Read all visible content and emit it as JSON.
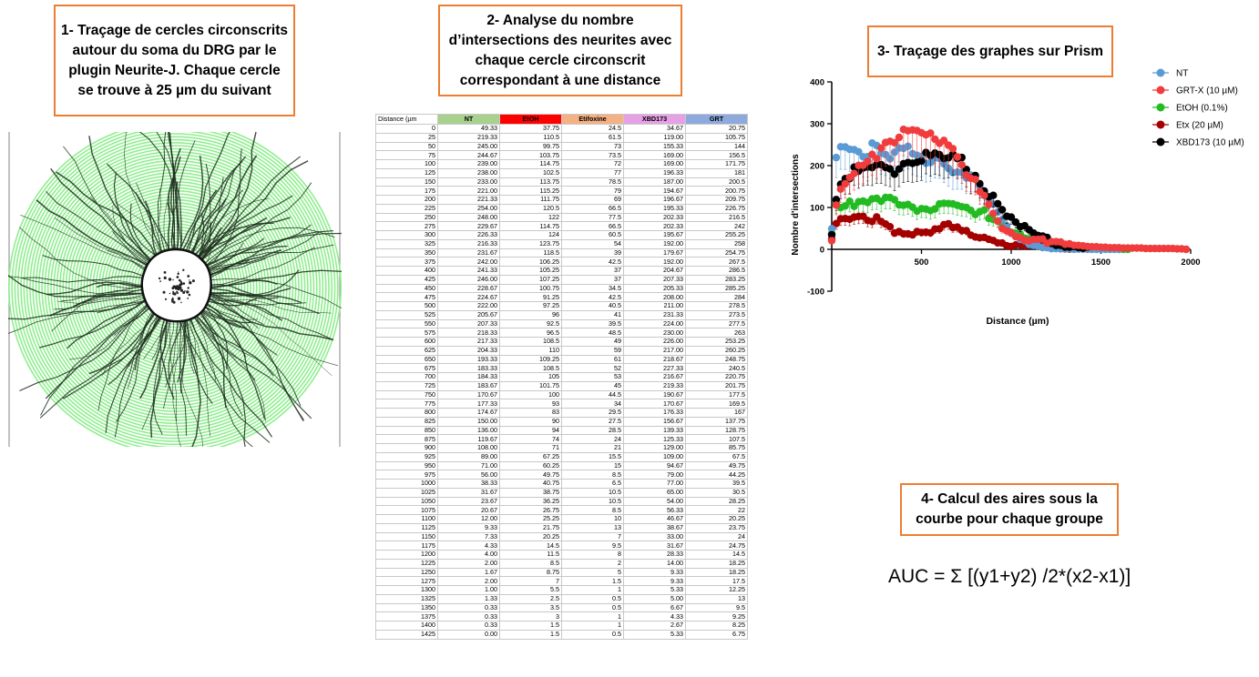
{
  "steps": {
    "step1": "1- Traçage de cercles circonscrits autour du soma du DRG par le plugin Neurite-J. Chaque cercle se trouve à 25 µm du suivant",
    "step2": "2- Analyse du nombre d’intersections des neurites avec chaque cercle circonscrit correspondant à une distance",
    "step3": "3- Traçage des graphes sur Prism",
    "step4": "4- Calcul des aires sous la courbe pour chaque groupe"
  },
  "formula": "AUC = Σ [(y1+y2) /2*(x2-x1)]",
  "colors": {
    "box_border": "#ed7d31",
    "circle_green": "#90ee90",
    "NT": "#5b9bd5",
    "EtOH": "#ff0000",
    "Etifoxine": "#f4b183",
    "XBD173": "#e6a1e6",
    "GRT": "#8ea9db",
    "header_NT": "#a9d18e"
  },
  "table": {
    "headers": [
      "Distance (µm",
      "NT",
      "EtOH",
      "Etifoxine",
      "XBD173",
      "GRT"
    ],
    "rows": [
      [
        "0",
        "49.33",
        "37.75",
        "24.5",
        "34.67",
        "20.75"
      ],
      [
        "25",
        "219.33",
        "110.5",
        "61.5",
        "119.00",
        "105.75"
      ],
      [
        "50",
        "245.00",
        "99.75",
        "73",
        "155.33",
        "144"
      ],
      [
        "75",
        "244.67",
        "103.75",
        "73.5",
        "169.00",
        "156.5"
      ],
      [
        "100",
        "239.00",
        "114.75",
        "72",
        "169.00",
        "171.75"
      ],
      [
        "125",
        "238.00",
        "102.5",
        "77",
        "196.33",
        "181"
      ],
      [
        "150",
        "233.00",
        "113.75",
        "78.5",
        "187.00",
        "200.5"
      ],
      [
        "175",
        "221.00",
        "115.25",
        "79",
        "194.67",
        "200.75"
      ],
      [
        "200",
        "221.33",
        "111.75",
        "69",
        "196.67",
        "209.75"
      ],
      [
        "225",
        "254.00",
        "120.5",
        "66.5",
        "195.33",
        "226.75"
      ],
      [
        "250",
        "248.00",
        "122",
        "77.5",
        "202.33",
        "216.5"
      ],
      [
        "275",
        "229.67",
        "114.75",
        "66.5",
        "202.33",
        "242"
      ],
      [
        "300",
        "226.33",
        "124",
        "60.5",
        "195.67",
        "255.25"
      ],
      [
        "325",
        "216.33",
        "123.75",
        "54",
        "192.00",
        "258"
      ],
      [
        "350",
        "231.67",
        "118.5",
        "39",
        "179.67",
        "254.75"
      ],
      [
        "375",
        "242.00",
        "106.25",
        "42.5",
        "192.00",
        "267.5"
      ],
      [
        "400",
        "241.33",
        "105.25",
        "37",
        "204.67",
        "286.5"
      ],
      [
        "425",
        "246.00",
        "107.25",
        "37",
        "207.33",
        "283.25"
      ],
      [
        "450",
        "228.67",
        "100.75",
        "34.5",
        "205.33",
        "285.25"
      ],
      [
        "475",
        "224.67",
        "91.25",
        "42.5",
        "208.00",
        "284"
      ],
      [
        "500",
        "222.00",
        "97.25",
        "40.5",
        "211.00",
        "278.5"
      ],
      [
        "525",
        "205.67",
        "96",
        "41",
        "231.33",
        "273.5"
      ],
      [
        "550",
        "207.33",
        "92.5",
        "39.5",
        "224.00",
        "277.5"
      ],
      [
        "575",
        "218.33",
        "96.5",
        "48.5",
        "230.00",
        "263"
      ],
      [
        "600",
        "217.33",
        "108.5",
        "49",
        "226.00",
        "253.25"
      ],
      [
        "625",
        "204.33",
        "110",
        "59",
        "217.00",
        "260.25"
      ],
      [
        "650",
        "193.33",
        "109.25",
        "61",
        "218.67",
        "248.75"
      ],
      [
        "675",
        "183.33",
        "108.5",
        "52",
        "227.33",
        "240.5"
      ],
      [
        "700",
        "184.33",
        "105",
        "53",
        "216.67",
        "220.75"
      ],
      [
        "725",
        "183.67",
        "101.75",
        "45",
        "219.33",
        "201.75"
      ],
      [
        "750",
        "170.67",
        "100",
        "44.5",
        "190.67",
        "177.5"
      ],
      [
        "775",
        "177.33",
        "93",
        "34",
        "170.67",
        "169.5"
      ],
      [
        "800",
        "174.67",
        "83",
        "29.5",
        "176.33",
        "167"
      ],
      [
        "825",
        "150.00",
        "90",
        "27.5",
        "156.67",
        "137.75"
      ],
      [
        "850",
        "136.00",
        "94",
        "28.5",
        "139.33",
        "128.75"
      ],
      [
        "875",
        "119.67",
        "74",
        "24",
        "125.33",
        "107.5"
      ],
      [
        "900",
        "108.00",
        "71",
        "21",
        "129.00",
        "85.75"
      ],
      [
        "925",
        "89.00",
        "67.25",
        "15.5",
        "109.00",
        "67.5"
      ],
      [
        "950",
        "71.00",
        "60.25",
        "15",
        "94.67",
        "49.75"
      ],
      [
        "975",
        "56.00",
        "49.75",
        "8.5",
        "79.00",
        "44.25"
      ],
      [
        "1000",
        "38.33",
        "40.75",
        "6.5",
        "77.00",
        "39.5"
      ],
      [
        "1025",
        "31.67",
        "38.75",
        "10.5",
        "65.00",
        "30.5"
      ],
      [
        "1050",
        "23.67",
        "36.25",
        "10.5",
        "54.00",
        "28.25"
      ],
      [
        "1075",
        "20.67",
        "26.75",
        "8.5",
        "56.33",
        "22"
      ],
      [
        "1100",
        "12.00",
        "25.25",
        "10",
        "46.67",
        "20.25"
      ],
      [
        "1125",
        "9.33",
        "21.75",
        "13",
        "38.67",
        "23.75"
      ],
      [
        "1150",
        "7.33",
        "20.25",
        "7",
        "33.00",
        "24"
      ],
      [
        "1175",
        "4.33",
        "14.5",
        "9.5",
        "31.67",
        "24.75"
      ],
      [
        "1200",
        "4.00",
        "11.5",
        "8",
        "28.33",
        "14.5"
      ],
      [
        "1225",
        "2.00",
        "8.5",
        "2",
        "14.00",
        "18.25"
      ],
      [
        "1250",
        "1.67",
        "8.75",
        "5",
        "9.33",
        "18.25"
      ],
      [
        "1275",
        "2.00",
        "7",
        "1.5",
        "9.33",
        "17.5"
      ],
      [
        "1300",
        "1.00",
        "5.5",
        "1",
        "5.33",
        "12.25"
      ],
      [
        "1325",
        "1.33",
        "2.5",
        "0.5",
        "5.00",
        "13"
      ],
      [
        "1350",
        "0.33",
        "3.5",
        "0.5",
        "6.67",
        "9.5"
      ],
      [
        "1375",
        "0.33",
        "3",
        "1",
        "4.33",
        "9.25"
      ],
      [
        "1400",
        "0.33",
        "1.5",
        "1",
        "2.67",
        "8.25"
      ],
      [
        "1425",
        "0.00",
        "1.5",
        "0.5",
        "5.33",
        "6.75"
      ]
    ]
  },
  "chart_data": {
    "type": "scatter",
    "xlabel": "Distance (µm)",
    "ylabel": "Nombre d'intersections",
    "xlim": [
      0,
      2000
    ],
    "ylim": [
      -100,
      400
    ],
    "xticks": [
      500,
      1000,
      1500,
      2000
    ],
    "yticks": [
      -100,
      0,
      100,
      200,
      300,
      400
    ],
    "legend_position": "top-right",
    "error_bars": true,
    "series": [
      {
        "name": "NT",
        "color": "#5b9bd5",
        "x": [
          0,
          25,
          50,
          75,
          100,
          125,
          150,
          175,
          200,
          225,
          250,
          275,
          300,
          325,
          350,
          375,
          400,
          425,
          450,
          475,
          500,
          525,
          550,
          575,
          600,
          625,
          650,
          675,
          700,
          725,
          750,
          775,
          800,
          825,
          850,
          875,
          900,
          925,
          950,
          975,
          1000,
          1025,
          1050,
          1075,
          1100,
          1125,
          1150,
          1175,
          1200,
          1225,
          1250,
          1275,
          1300,
          1325,
          1350,
          1375,
          1400,
          1425,
          1450,
          1475,
          1500,
          1525,
          1550,
          1575,
          1600
        ],
        "y": [
          49.33,
          219.33,
          245,
          244.67,
          239,
          238,
          233,
          221,
          221.33,
          254,
          248,
          229.67,
          226.33,
          216.33,
          231.67,
          242,
          241.33,
          246,
          228.67,
          224.67,
          222,
          205.67,
          207.33,
          218.33,
          217.33,
          204.33,
          193.33,
          183.33,
          184.33,
          183.67,
          170.67,
          177.33,
          174.67,
          150,
          136,
          119.67,
          108,
          89,
          71,
          56,
          38.33,
          31.67,
          23.67,
          20.67,
          12,
          9.33,
          7.33,
          4.33,
          4,
          2,
          1.67,
          2,
          1,
          1.33,
          0.33,
          0.33,
          0.33,
          0,
          0,
          0,
          0,
          0,
          0,
          0,
          0
        ]
      },
      {
        "name": "GRT-X (10 µM)",
        "color": "#f03c3c",
        "x": [
          0,
          25,
          50,
          75,
          100,
          125,
          150,
          175,
          200,
          225,
          250,
          275,
          300,
          325,
          350,
          375,
          400,
          425,
          450,
          475,
          500,
          525,
          550,
          575,
          600,
          625,
          650,
          675,
          700,
          725,
          750,
          775,
          800,
          825,
          850,
          875,
          900,
          925,
          950,
          975,
          1000,
          1025,
          1050,
          1075,
          1100,
          1125,
          1150,
          1175,
          1200,
          1225,
          1250,
          1275,
          1300,
          1325,
          1350,
          1375,
          1400,
          1425,
          1450,
          1475,
          1500,
          1525,
          1550,
          1575,
          1600,
          1625,
          1650,
          1675,
          1700,
          1725,
          1750,
          1775,
          1800,
          1825,
          1850,
          1875,
          1900,
          1925,
          1950,
          1975
        ],
        "y": [
          20.75,
          105.75,
          144,
          156.5,
          171.75,
          181,
          200.5,
          200.75,
          209.75,
          226.75,
          216.5,
          242,
          255.25,
          258,
          254.75,
          267.5,
          286.5,
          283.25,
          285.25,
          284,
          278.5,
          273.5,
          277.5,
          263,
          253.25,
          260.25,
          248.75,
          240.5,
          220.75,
          201.75,
          177.5,
          169.5,
          167,
          137.75,
          128.75,
          107.5,
          85.75,
          67.5,
          49.75,
          44.25,
          39.5,
          30.5,
          28.25,
          22,
          20.25,
          23.75,
          24,
          24.75,
          14.5,
          18.25,
          18.25,
          17.5,
          12.25,
          13,
          9.5,
          9.25,
          8.25,
          6.75,
          6,
          6,
          5,
          5,
          4,
          4,
          4,
          3,
          3,
          3,
          3,
          3,
          2,
          2,
          2,
          2,
          2,
          2,
          2,
          1,
          1,
          0
        ]
      },
      {
        "name": "EtOH (0.1%)",
        "color": "#22bb22",
        "x": [
          0,
          25,
          50,
          75,
          100,
          125,
          150,
          175,
          200,
          225,
          250,
          275,
          300,
          325,
          350,
          375,
          400,
          425,
          450,
          475,
          500,
          525,
          550,
          575,
          600,
          625,
          650,
          675,
          700,
          725,
          750,
          775,
          800,
          825,
          850,
          875,
          900,
          925,
          950,
          975,
          1000,
          1025,
          1050,
          1075,
          1100,
          1125,
          1150,
          1175,
          1200,
          1225,
          1250,
          1275,
          1300,
          1325,
          1350,
          1375,
          1400,
          1425,
          1450,
          1475,
          1500,
          1525,
          1550,
          1575,
          1600,
          1625,
          1650
        ],
        "y": [
          37.75,
          110.5,
          99.75,
          103.75,
          114.75,
          102.5,
          113.75,
          115.25,
          111.75,
          120.5,
          122,
          114.75,
          124,
          123.75,
          118.5,
          106.25,
          105.25,
          107.25,
          100.75,
          91.25,
          97.25,
          96,
          92.5,
          96.5,
          108.5,
          110,
          109.25,
          108.5,
          105,
          101.75,
          100,
          93,
          83,
          90,
          94,
          74,
          71,
          67.25,
          60.25,
          49.75,
          40.75,
          38.75,
          36.25,
          26.75,
          25.25,
          21.75,
          20.25,
          14.5,
          11.5,
          8.5,
          8.75,
          7,
          5.5,
          2.5,
          3.5,
          3,
          1.5,
          1.5,
          1,
          1,
          1,
          1,
          1,
          1,
          0,
          0,
          0
        ]
      },
      {
        "name": "Etx (20 µM)",
        "color": "#a50000",
        "x": [
          0,
          25,
          50,
          75,
          100,
          125,
          150,
          175,
          200,
          225,
          250,
          275,
          300,
          325,
          350,
          375,
          400,
          425,
          450,
          475,
          500,
          525,
          550,
          575,
          600,
          625,
          650,
          675,
          700,
          725,
          750,
          775,
          800,
          825,
          850,
          875,
          900,
          925,
          950,
          975,
          1000,
          1025,
          1050,
          1075,
          1100,
          1125,
          1150,
          1175,
          1200,
          1225,
          1250,
          1275,
          1300,
          1325,
          1350,
          1375,
          1400,
          1425
        ],
        "y": [
          24.5,
          61.5,
          73,
          73.5,
          72,
          77,
          78.5,
          79,
          69,
          66.5,
          77.5,
          66.5,
          60.5,
          54,
          39,
          42.5,
          37,
          37,
          34.5,
          42.5,
          40.5,
          41,
          39.5,
          48.5,
          49,
          59,
          61,
          52,
          53,
          45,
          44.5,
          34,
          29.5,
          27.5,
          28.5,
          24,
          21,
          15.5,
          15,
          8.5,
          6.5,
          10.5,
          10.5,
          8.5,
          10,
          13,
          7,
          9.5,
          8,
          2,
          5,
          1.5,
          1,
          0.5,
          0.5,
          1,
          1,
          0.5
        ]
      },
      {
        "name": "XBD173 (10 µM)",
        "color": "#000000",
        "x": [
          0,
          25,
          50,
          75,
          100,
          125,
          150,
          175,
          200,
          225,
          250,
          275,
          300,
          325,
          350,
          375,
          400,
          425,
          450,
          475,
          500,
          525,
          550,
          575,
          600,
          625,
          650,
          675,
          700,
          725,
          750,
          775,
          800,
          825,
          850,
          875,
          900,
          925,
          950,
          975,
          1000,
          1025,
          1050,
          1075,
          1100,
          1125,
          1150,
          1175,
          1200,
          1225,
          1250,
          1275,
          1300,
          1325,
          1350,
          1375,
          1400,
          1425
        ],
        "y": [
          34.67,
          119,
          155.33,
          169,
          169,
          196.33,
          187,
          194.67,
          196.67,
          195.33,
          202.33,
          202.33,
          195.67,
          192,
          179.67,
          192,
          204.67,
          207.33,
          205.33,
          208,
          211,
          231.33,
          224,
          230,
          226,
          217,
          218.67,
          227.33,
          216.67,
          219.33,
          190.67,
          170.67,
          176.33,
          156.67,
          139.33,
          125.33,
          129,
          109,
          94.67,
          79,
          77,
          65,
          54,
          56.33,
          46.67,
          38.67,
          33,
          31.67,
          28.33,
          14,
          9.33,
          9.33,
          5.33,
          5,
          6.67,
          4.33,
          2.67,
          5.33
        ]
      }
    ]
  }
}
